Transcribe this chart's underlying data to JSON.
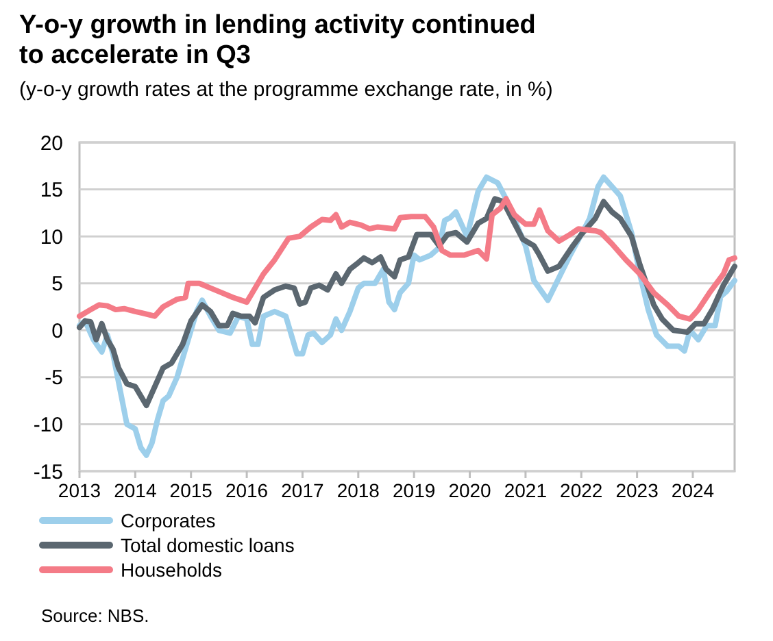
{
  "chart_data": {
    "type": "line",
    "title": "Y-o-y growth in lending activity continued to accelerate in Q3",
    "subtitle": "(y-o-y growth rates at the programme exchange rate, in %)",
    "xlim": [
      2013,
      2024.75
    ],
    "xticks": [
      2013,
      2014,
      2015,
      2016,
      2017,
      2018,
      2019,
      2020,
      2021,
      2022,
      2023,
      2024
    ],
    "ylim": [
      -15,
      20
    ],
    "yticks": [
      -15,
      -10,
      -5,
      0,
      5,
      10,
      15,
      20
    ],
    "grid": "y",
    "legend": "bottom",
    "line_style": "solid",
    "marker": "none",
    "annotations": [
      "Source: NBS."
    ],
    "series": [
      {
        "name": "Corporates",
        "color": "#9dcfeb",
        "x": [
          2013.0,
          2013.1,
          2013.25,
          2013.4,
          2013.5,
          2013.6,
          2013.75,
          2013.85,
          2014.0,
          2014.1,
          2014.2,
          2014.3,
          2014.4,
          2014.5,
          2014.6,
          2014.75,
          2014.9,
          2015.0,
          2015.1,
          2015.2,
          2015.35,
          2015.5,
          2015.7,
          2015.85,
          2016.0,
          2016.1,
          2016.2,
          2016.3,
          2016.5,
          2016.7,
          2016.9,
          2017.0,
          2017.1,
          2017.2,
          2017.35,
          2017.5,
          2017.6,
          2017.7,
          2017.85,
          2018.0,
          2018.1,
          2018.3,
          2018.45,
          2018.55,
          2018.65,
          2018.75,
          2018.9,
          2019.0,
          2019.1,
          2019.3,
          2019.45,
          2019.55,
          2019.65,
          2019.75,
          2019.95,
          2020.15,
          2020.3,
          2020.5,
          2020.65,
          2020.9,
          2021.0,
          2021.15,
          2021.4,
          2021.55,
          2021.8,
          2022.0,
          2022.15,
          2022.3,
          2022.4,
          2022.55,
          2022.7,
          2022.9,
          2023.05,
          2023.2,
          2023.35,
          2023.55,
          2023.75,
          2023.85,
          2023.95,
          2024.1,
          2024.25,
          2024.4,
          2024.5,
          2024.6,
          2024.75
        ],
        "values": [
          0.5,
          1,
          -1,
          -2.3,
          -0.5,
          -2.5,
          -7,
          -10,
          -10.5,
          -12.5,
          -13.3,
          -12,
          -9.5,
          -7.5,
          -7,
          -5,
          -2,
          0,
          2,
          3.2,
          1.5,
          0,
          -0.3,
          1.5,
          1.2,
          -1.5,
          -1.5,
          1.5,
          2,
          1.5,
          -2.5,
          -2.5,
          -0.5,
          -0.3,
          -1.3,
          -0.5,
          1.2,
          0,
          2,
          4.5,
          5,
          5,
          6.5,
          3,
          2.2,
          4,
          5,
          8,
          7.5,
          8,
          8.8,
          11.7,
          12,
          12.6,
          10,
          14.8,
          16.3,
          15.7,
          14,
          10.4,
          9,
          5.3,
          3.2,
          5,
          8,
          10.2,
          11.9,
          15.3,
          16.3,
          15.3,
          14.3,
          10.4,
          6,
          2.2,
          -0.5,
          -1.7,
          -1.7,
          -2.2,
          0,
          -1,
          0.5,
          0.5,
          3.6,
          4.1,
          5.3
        ]
      },
      {
        "name": "Total domestic loans",
        "color": "#5b6770",
        "x": [
          2013.0,
          2013.1,
          2013.2,
          2013.3,
          2013.4,
          2013.5,
          2013.6,
          2013.7,
          2013.85,
          2014.0,
          2014.1,
          2014.2,
          2014.35,
          2014.5,
          2014.65,
          2014.85,
          2015.0,
          2015.2,
          2015.35,
          2015.5,
          2015.65,
          2015.75,
          2015.9,
          2016.05,
          2016.15,
          2016.3,
          2016.5,
          2016.7,
          2016.85,
          2016.95,
          2017.05,
          2017.15,
          2017.3,
          2017.45,
          2017.6,
          2017.7,
          2017.85,
          2018.0,
          2018.1,
          2018.25,
          2018.4,
          2018.5,
          2018.65,
          2018.75,
          2018.9,
          2019.05,
          2019.3,
          2019.45,
          2019.6,
          2019.75,
          2019.95,
          2020.15,
          2020.3,
          2020.45,
          2020.6,
          2020.8,
          2020.95,
          2021.15,
          2021.25,
          2021.4,
          2021.6,
          2021.85,
          2022.0,
          2022.25,
          2022.4,
          2022.55,
          2022.7,
          2022.9,
          2023.05,
          2023.3,
          2023.45,
          2023.65,
          2023.9,
          2024.05,
          2024.2,
          2024.35,
          2024.55,
          2024.75
        ],
        "values": [
          0.3,
          1,
          0.9,
          -1,
          0.7,
          -1,
          -2,
          -4,
          -5.7,
          -6,
          -7,
          -8,
          -6,
          -4,
          -3.5,
          -1.5,
          1,
          2.7,
          2,
          0.5,
          0.5,
          1.8,
          1.5,
          1.5,
          0.8,
          3.5,
          4.3,
          4.7,
          4.5,
          2.8,
          3,
          4.5,
          4.8,
          4.3,
          6,
          5,
          6.5,
          7.2,
          7.7,
          7.2,
          7.8,
          6.5,
          5.7,
          7.5,
          7.8,
          10.2,
          10.2,
          9,
          10.2,
          10.4,
          9.4,
          11.4,
          11.9,
          14,
          13.7,
          11.4,
          9.7,
          9,
          8,
          6.3,
          6.8,
          9,
          10.2,
          11.9,
          13.7,
          12.6,
          11.9,
          10,
          7,
          2.7,
          1.2,
          0,
          -0.2,
          0.7,
          0.7,
          2.2,
          4.8,
          6.8
        ]
      },
      {
        "name": "Households",
        "color": "#f47b87",
        "x": [
          2013.0,
          2013.2,
          2013.35,
          2013.5,
          2013.65,
          2013.8,
          2014.0,
          2014.15,
          2014.35,
          2014.5,
          2014.75,
          2014.9,
          2014.95,
          2015.15,
          2015.35,
          2015.55,
          2015.75,
          2015.9,
          2016.0,
          2016.1,
          2016.3,
          2016.5,
          2016.75,
          2016.95,
          2017.15,
          2017.35,
          2017.5,
          2017.6,
          2017.7,
          2017.85,
          2018.05,
          2018.2,
          2018.35,
          2018.65,
          2018.75,
          2018.95,
          2019.2,
          2019.35,
          2019.5,
          2019.65,
          2019.9,
          2020.15,
          2020.3,
          2020.4,
          2020.55,
          2020.65,
          2020.8,
          2021.0,
          2021.15,
          2021.25,
          2021.4,
          2021.6,
          2021.8,
          2021.95,
          2022.25,
          2022.35,
          2022.55,
          2022.8,
          2023.05,
          2023.3,
          2023.55,
          2023.75,
          2023.95,
          2024.1,
          2024.3,
          2024.55,
          2024.65,
          2024.75
        ],
        "values": [
          1.5,
          2.2,
          2.7,
          2.6,
          2.2,
          2.3,
          2,
          1.8,
          1.5,
          2.5,
          3.3,
          3.5,
          5,
          5,
          4.5,
          4,
          3.5,
          3.2,
          3,
          4,
          6,
          7.5,
          9.8,
          10,
          11,
          11.8,
          11.7,
          12.3,
          11,
          11.5,
          11.2,
          10.8,
          11,
          10.8,
          12,
          12.1,
          12.1,
          11,
          8.5,
          8,
          8,
          8.5,
          7.6,
          12.3,
          13,
          14,
          12.3,
          11.3,
          11.3,
          12.8,
          10.6,
          9.5,
          10.2,
          10.8,
          10.6,
          10.4,
          9.2,
          7.5,
          6,
          4,
          2.7,
          1.5,
          1.2,
          2.2,
          4,
          6,
          7.5,
          7.7
        ]
      }
    ]
  }
}
